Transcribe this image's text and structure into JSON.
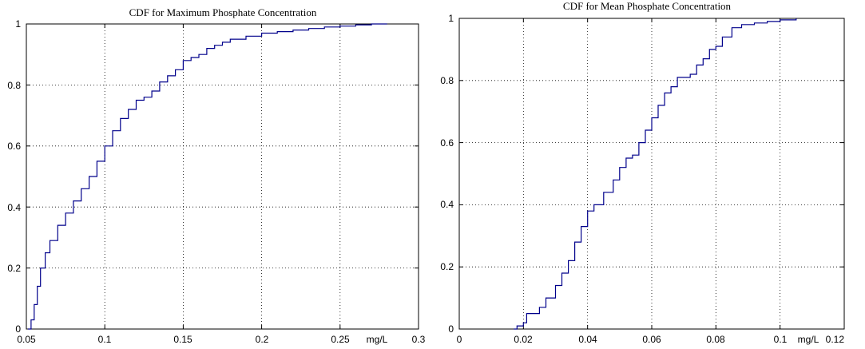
{
  "chart_data": [
    {
      "type": "line",
      "title": "CDF for Maximum Phosphate Concentration",
      "xlabel": "",
      "ylabel": "",
      "xlim": [
        0.05,
        0.3
      ],
      "ylim": [
        0,
        1
      ],
      "grid": true,
      "xtick_labels": [
        "0.05",
        "0.1",
        "0.15",
        "0.2",
        "0.25",
        "mg/L",
        "0.3"
      ],
      "ytick_labels": [
        "0",
        "0.2",
        "0.4",
        "0.6",
        "0.8",
        "1"
      ],
      "series": [
        {
          "color": "#00008b",
          "x": [
            0.051,
            0.053,
            0.055,
            0.057,
            0.059,
            0.062,
            0.065,
            0.07,
            0.075,
            0.08,
            0.085,
            0.09,
            0.095,
            0.1,
            0.105,
            0.11,
            0.115,
            0.12,
            0.125,
            0.13,
            0.135,
            0.14,
            0.145,
            0.15,
            0.155,
            0.16,
            0.165,
            0.17,
            0.175,
            0.18,
            0.19,
            0.2,
            0.21,
            0.22,
            0.23,
            0.24,
            0.25,
            0.26,
            0.27,
            0.28
          ],
          "y": [
            0.0,
            0.03,
            0.08,
            0.14,
            0.2,
            0.25,
            0.29,
            0.34,
            0.38,
            0.42,
            0.46,
            0.5,
            0.55,
            0.6,
            0.65,
            0.69,
            0.72,
            0.75,
            0.76,
            0.78,
            0.81,
            0.83,
            0.85,
            0.88,
            0.89,
            0.9,
            0.92,
            0.93,
            0.94,
            0.95,
            0.96,
            0.97,
            0.975,
            0.98,
            0.985,
            0.99,
            0.993,
            0.997,
            1.0,
            1.0
          ]
        }
      ]
    },
    {
      "type": "line",
      "title": "CDF for Mean Phosphate Concentration",
      "xlabel": "",
      "ylabel": "",
      "xlim": [
        0,
        0.12
      ],
      "ylim": [
        0,
        1
      ],
      "grid": true,
      "xtick_labels": [
        "0",
        "0.02",
        "0.04",
        "0.06",
        "0.08",
        "0.1",
        "mg/L",
        "0.12"
      ],
      "ytick_labels": [
        "0",
        "0.2",
        "0.4",
        "0.6",
        "0.8",
        "1"
      ],
      "series": [
        {
          "color": "#00008b",
          "x": [
            0.017,
            0.018,
            0.02,
            0.021,
            0.025,
            0.027,
            0.03,
            0.032,
            0.034,
            0.036,
            0.038,
            0.04,
            0.042,
            0.045,
            0.048,
            0.05,
            0.052,
            0.054,
            0.056,
            0.058,
            0.06,
            0.062,
            0.064,
            0.066,
            0.068,
            0.07,
            0.072,
            0.074,
            0.076,
            0.078,
            0.08,
            0.082,
            0.085,
            0.088,
            0.092,
            0.096,
            0.1,
            0.105
          ],
          "y": [
            0.0,
            0.01,
            0.02,
            0.05,
            0.07,
            0.1,
            0.14,
            0.18,
            0.22,
            0.28,
            0.33,
            0.38,
            0.4,
            0.44,
            0.48,
            0.52,
            0.55,
            0.56,
            0.6,
            0.64,
            0.68,
            0.72,
            0.76,
            0.78,
            0.81,
            0.81,
            0.82,
            0.85,
            0.87,
            0.9,
            0.91,
            0.94,
            0.97,
            0.98,
            0.985,
            0.99,
            0.995,
            1.0
          ]
        }
      ]
    }
  ]
}
